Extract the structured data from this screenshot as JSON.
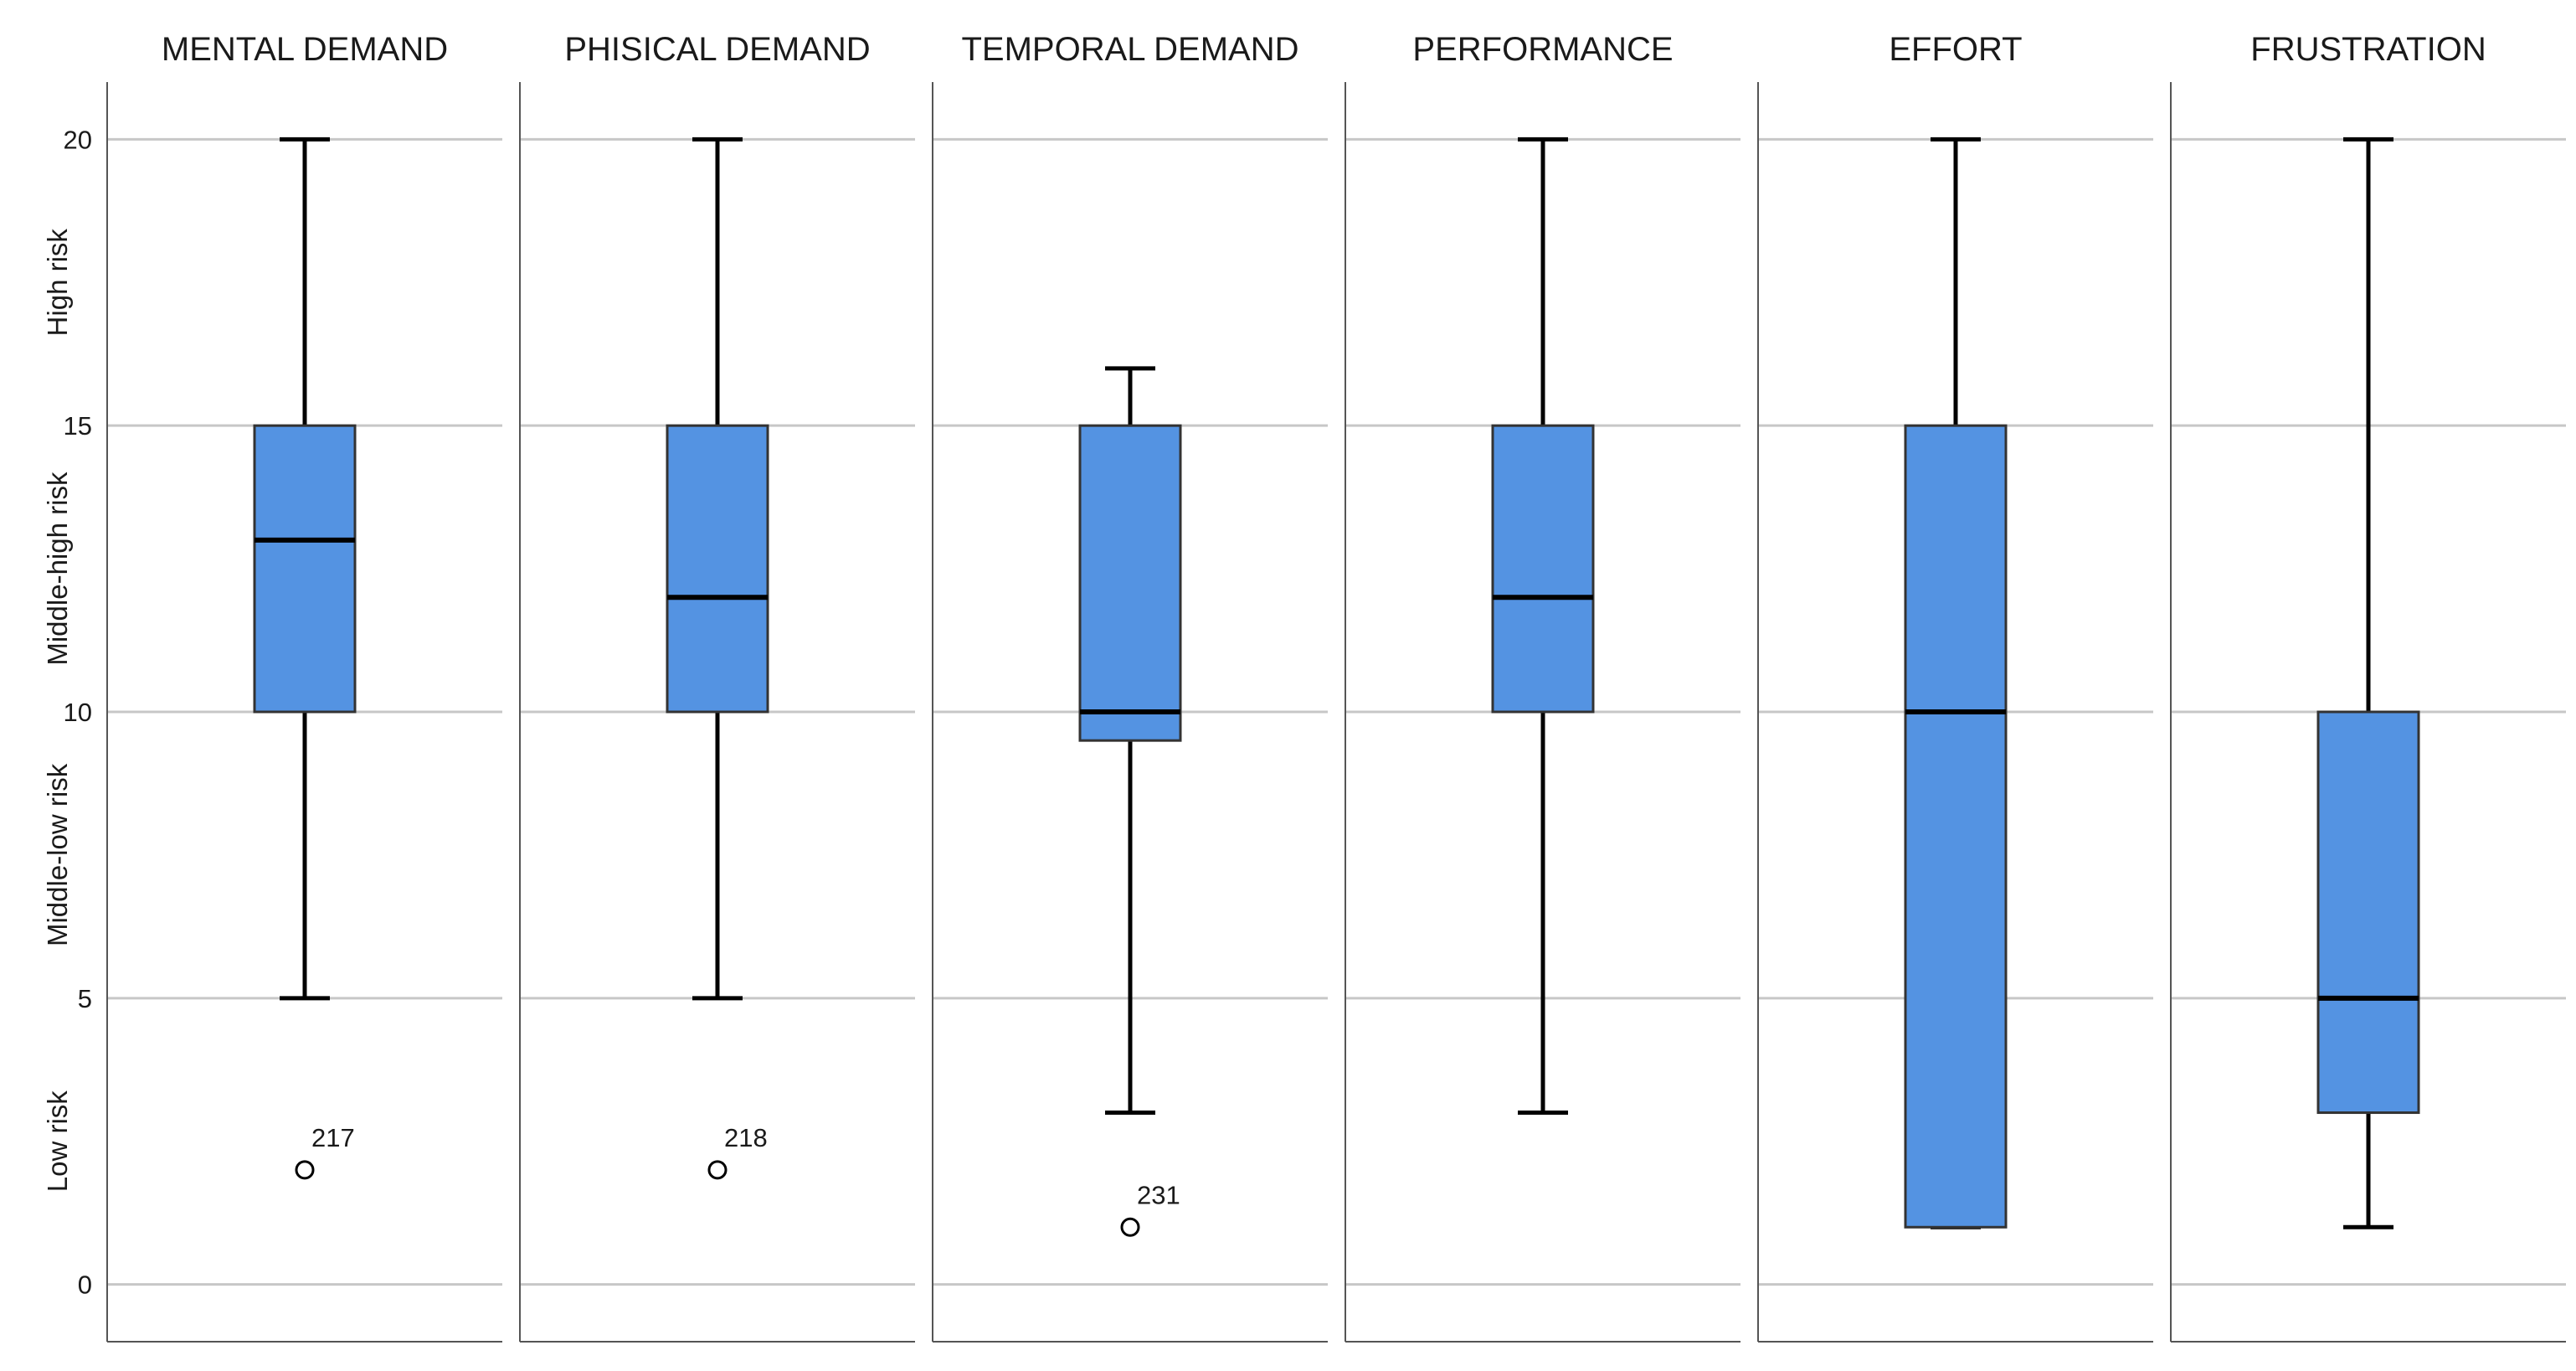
{
  "chart_data": {
    "type": "boxplot",
    "title": "",
    "ylim": [
      -1,
      21
    ],
    "yticks": [
      0,
      5,
      10,
      15,
      20
    ],
    "ytick_labels": [
      "0",
      "5",
      "10",
      "15",
      "20"
    ],
    "band_labels": [
      {
        "label": "Low risk",
        "from": 0,
        "to": 5
      },
      {
        "label": "Middle-low risk",
        "from": 5,
        "to": 10
      },
      {
        "label": "Middle-high risk",
        "from": 10,
        "to": 15
      },
      {
        "label": "High risk",
        "from": 15,
        "to": 20
      }
    ],
    "box_color": "#5493e2",
    "series": [
      {
        "name": "MENTAL DEMAND",
        "min": 5,
        "q1": 10,
        "median": 13,
        "q3": 15,
        "max": 20,
        "outliers": [
          {
            "value": 2,
            "label": "217"
          }
        ]
      },
      {
        "name": "PHISICAL DEMAND",
        "min": 5,
        "q1": 10,
        "median": 12,
        "q3": 15,
        "max": 20,
        "outliers": [
          {
            "value": 2,
            "label": "218"
          }
        ]
      },
      {
        "name": "TEMPORAL DEMAND",
        "min": 3,
        "q1": 9.5,
        "median": 10,
        "q3": 15,
        "max": 16,
        "outliers": [
          {
            "value": 1,
            "label": "231"
          }
        ]
      },
      {
        "name": "PERFORMANCE",
        "min": 3,
        "q1": 10,
        "median": 12,
        "q3": 15,
        "max": 20,
        "outliers": []
      },
      {
        "name": "EFFORT",
        "min": 1,
        "q1": 1,
        "median": 10,
        "q3": 15,
        "max": 20,
        "outliers": []
      },
      {
        "name": "FRUSTRATION",
        "min": 1,
        "q1": 3,
        "median": 5,
        "q3": 10,
        "max": 20,
        "outliers": []
      }
    ]
  }
}
